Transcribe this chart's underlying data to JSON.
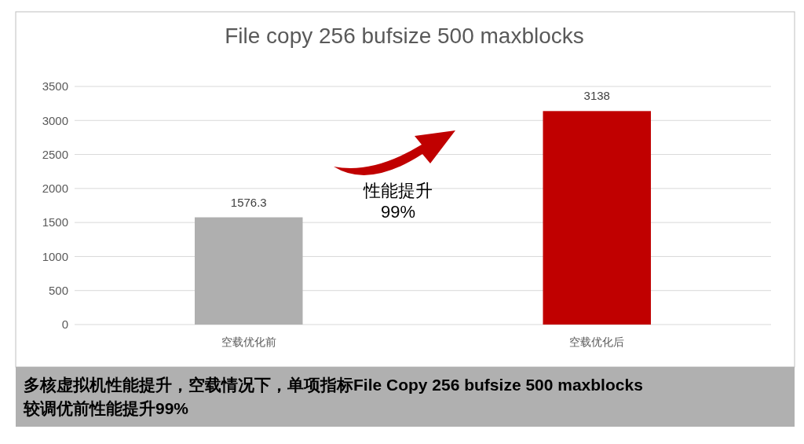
{
  "chart_data": {
    "type": "bar",
    "title": "File copy 256 bufsize 500 maxblocks",
    "categories": [
      "空载优化前",
      "空载优化后"
    ],
    "values": [
      1576.3,
      3138
    ],
    "colors": [
      "#afafaf",
      "#c00000"
    ],
    "ylim": [
      0,
      3500
    ],
    "yticks": [
      0,
      500,
      1000,
      1500,
      2000,
      2500,
      3000,
      3500
    ],
    "grid": "y",
    "data_labels": true,
    "annotations": [
      "性能提升\n99%",
      "多核虚拟机性能提升，空载情况下，单项指标File Copy 256 bufsize 500 maxblocks\n较调优前性能提升99%"
    ]
  }
}
